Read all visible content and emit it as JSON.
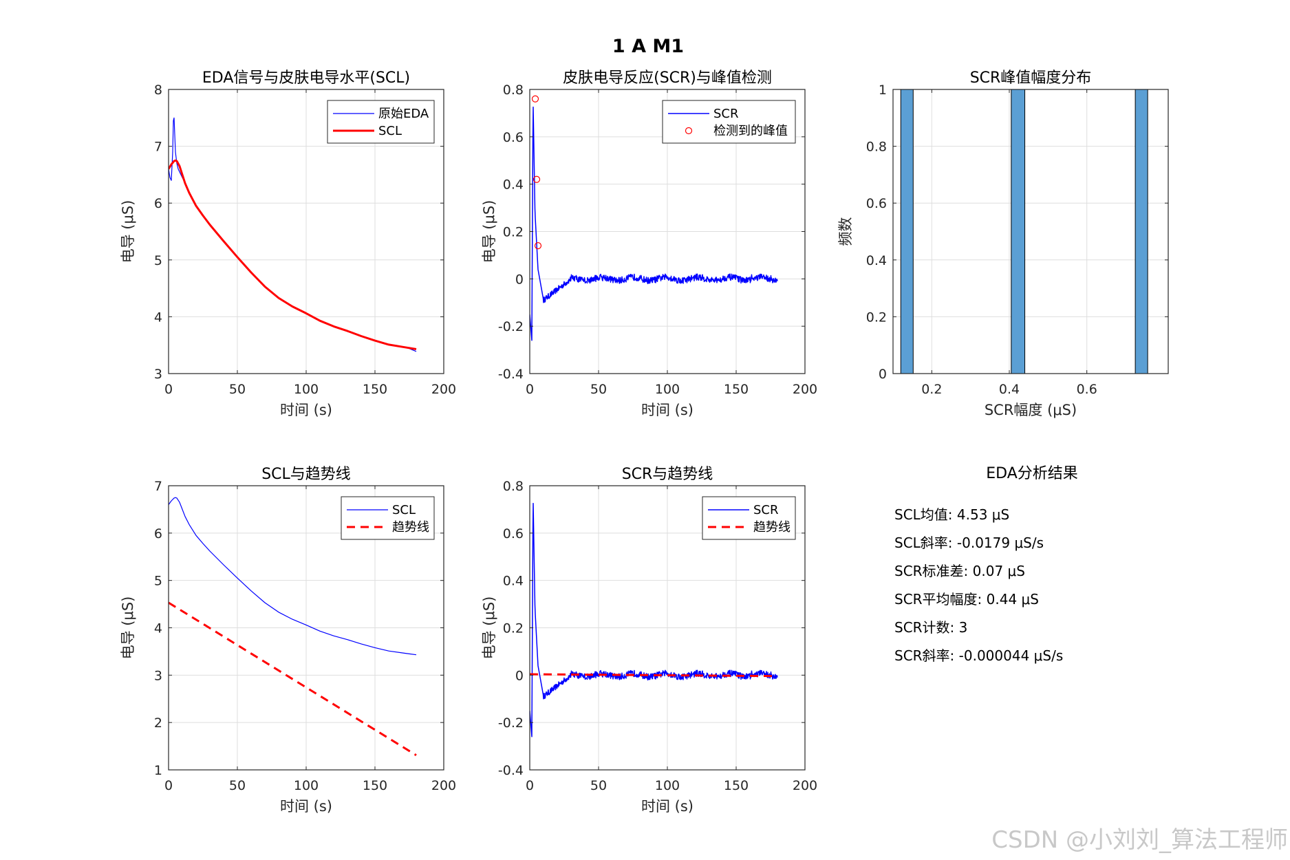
{
  "figure": {
    "suptitle": "1 A M1",
    "watermark": "CSDN @小刘刘_算法工程师"
  },
  "colors": {
    "blue": "#0000ff",
    "red": "#ff0000",
    "bar": "#5b9fd4"
  },
  "chart_data": [
    {
      "id": "eda",
      "type": "line",
      "title": "EDA信号与皮肤电导水平(SCL)",
      "xlabel": "时间 (s)",
      "ylabel": "电导 (μS)",
      "xlim": [
        0,
        200
      ],
      "ylim": [
        3,
        8
      ],
      "xticks": [
        0,
        50,
        100,
        150,
        200
      ],
      "yticks": [
        3,
        4,
        5,
        6,
        7,
        8
      ],
      "grid": true,
      "legend_position": "top-right",
      "series": [
        {
          "name": "原始EDA",
          "color": "#0000ff",
          "width": 1.2,
          "x": [
            0,
            1,
            2,
            3,
            3.5,
            4,
            4.5,
            5,
            6,
            7,
            8,
            10,
            12,
            15,
            20,
            25,
            30,
            40,
            50,
            60,
            70,
            80,
            90,
            100,
            110,
            120,
            130,
            140,
            150,
            160,
            165,
            170,
            175,
            180
          ],
          "y": [
            6.6,
            6.45,
            6.4,
            6.9,
            7.45,
            7.5,
            7.2,
            6.9,
            6.7,
            6.6,
            6.55,
            6.45,
            6.35,
            6.2,
            5.95,
            5.78,
            5.62,
            5.33,
            5.05,
            4.78,
            4.53,
            4.33,
            4.18,
            4.06,
            3.93,
            3.83,
            3.75,
            3.66,
            3.58,
            3.51,
            3.5,
            3.47,
            3.44,
            3.39
          ]
        },
        {
          "name": "SCL",
          "color": "#ff0000",
          "width": 3,
          "x": [
            0,
            2,
            4,
            5,
            6,
            8,
            10,
            12,
            15,
            20,
            25,
            30,
            40,
            50,
            60,
            70,
            80,
            90,
            100,
            110,
            120,
            130,
            140,
            150,
            160,
            170,
            175,
            180
          ],
          "y": [
            6.6,
            6.68,
            6.74,
            6.75,
            6.74,
            6.65,
            6.5,
            6.35,
            6.18,
            5.95,
            5.78,
            5.62,
            5.33,
            5.05,
            4.78,
            4.53,
            4.33,
            4.18,
            4.06,
            3.93,
            3.83,
            3.75,
            3.66,
            3.58,
            3.51,
            3.47,
            3.45,
            3.43
          ]
        }
      ]
    },
    {
      "id": "scr",
      "type": "line",
      "title": "皮肤电导反应(SCR)与峰值检测",
      "xlabel": "时间 (s)",
      "ylabel": "电导 (μS)",
      "xlim": [
        0,
        200
      ],
      "ylim": [
        -0.4,
        0.8
      ],
      "xticks": [
        0,
        50,
        100,
        150,
        200
      ],
      "yticks": [
        -0.4,
        -0.2,
        0,
        0.2,
        0.4,
        0.6,
        0.8
      ],
      "grid": true,
      "legend_position": "top-right",
      "series": [
        {
          "name": "SCR",
          "color": "#0000ff",
          "width": 1.5,
          "kind": "scr_signal"
        },
        {
          "name": "检测到的峰值",
          "color": "#ff0000",
          "kind": "markers",
          "x": [
            4,
            5,
            6
          ],
          "y": [
            0.76,
            0.42,
            0.14
          ]
        }
      ]
    },
    {
      "id": "hist",
      "type": "bar",
      "title": "SCR峰值幅度分布",
      "xlabel": "SCR幅度 (μS)",
      "ylabel": "频数",
      "xlim": [
        0.1,
        0.81
      ],
      "ylim": [
        0,
        1
      ],
      "xticks": [
        0.2,
        0.4,
        0.6
      ],
      "yticks": [
        0,
        0.2,
        0.4,
        0.6,
        0.8,
        1
      ],
      "grid": true,
      "bins": [
        {
          "x0": 0.12,
          "x1": 0.152,
          "count": 1
        },
        {
          "x0": 0.405,
          "x1": 0.44,
          "count": 1
        },
        {
          "x0": 0.725,
          "x1": 0.757,
          "count": 1
        }
      ]
    },
    {
      "id": "scl_trend",
      "type": "line",
      "title": "SCL与趋势线",
      "xlabel": "时间 (s)",
      "ylabel": "电导 (μS)",
      "xlim": [
        0,
        200
      ],
      "ylim": [
        1,
        7
      ],
      "xticks": [
        0,
        50,
        100,
        150,
        200
      ],
      "yticks": [
        1,
        2,
        3,
        4,
        5,
        6,
        7
      ],
      "grid": true,
      "legend_position": "top-right",
      "series": [
        {
          "name": "SCL",
          "color": "#0000ff",
          "width": 1.2,
          "x": [
            0,
            2,
            4,
            5,
            6,
            8,
            10,
            12,
            15,
            20,
            25,
            30,
            40,
            50,
            60,
            70,
            80,
            90,
            100,
            110,
            120,
            130,
            140,
            150,
            160,
            170,
            175,
            180
          ],
          "y": [
            6.6,
            6.68,
            6.74,
            6.75,
            6.74,
            6.65,
            6.5,
            6.35,
            6.18,
            5.95,
            5.78,
            5.62,
            5.33,
            5.05,
            4.78,
            4.53,
            4.33,
            4.18,
            4.06,
            3.93,
            3.83,
            3.75,
            3.66,
            3.58,
            3.51,
            3.47,
            3.45,
            3.43
          ]
        },
        {
          "name": "趋势线",
          "color": "#ff0000",
          "width": 3,
          "dash": true,
          "x": [
            0,
            180
          ],
          "y": [
            4.53,
            1.31
          ]
        }
      ]
    },
    {
      "id": "scr_trend",
      "type": "line",
      "title": "SCR与趋势线",
      "xlabel": "时间 (s)",
      "ylabel": "电导 (μS)",
      "xlim": [
        0,
        200
      ],
      "ylim": [
        -0.4,
        0.8
      ],
      "xticks": [
        0,
        50,
        100,
        150,
        200
      ],
      "yticks": [
        -0.4,
        -0.2,
        0,
        0.2,
        0.4,
        0.6,
        0.8
      ],
      "grid": true,
      "legend_position": "top-right",
      "series": [
        {
          "name": "SCR",
          "color": "#0000ff",
          "width": 1.5,
          "kind": "scr_signal"
        },
        {
          "name": "趋势线",
          "color": "#ff0000",
          "width": 3,
          "dash": true,
          "x": [
            0,
            180
          ],
          "y": [
            0.004,
            -0.004
          ]
        }
      ]
    }
  ],
  "results": {
    "title": "EDA分析结果",
    "lines": [
      "SCL均值: 4.53 μS",
      "SCL斜率: -0.0179 μS/s",
      "SCR标准差: 0.07 μS",
      "SCR平均幅度: 0.44 μS",
      "SCR计数: 3",
      "SCR斜率: -0.000044 μS/s"
    ]
  }
}
